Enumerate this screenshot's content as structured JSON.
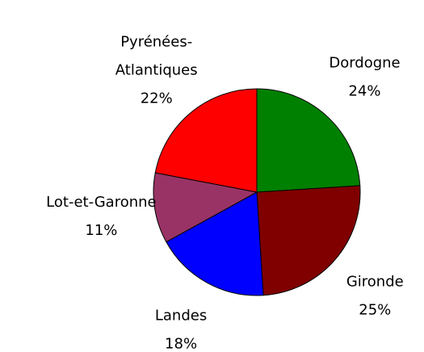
{
  "chart_data": {
    "type": "pie",
    "categories": [
      "Dordogne",
      "Gironde",
      "Landes",
      "Lot-et-Garonne",
      "Pyrénées-Atlantiques"
    ],
    "values": [
      24,
      25,
      18,
      11,
      22
    ],
    "value_labels": [
      "24%",
      "25%",
      "18%",
      "11%",
      "22%"
    ],
    "colors": [
      "#008000",
      "#800000",
      "#0000ff",
      "#993366",
      "#ff0000"
    ]
  }
}
